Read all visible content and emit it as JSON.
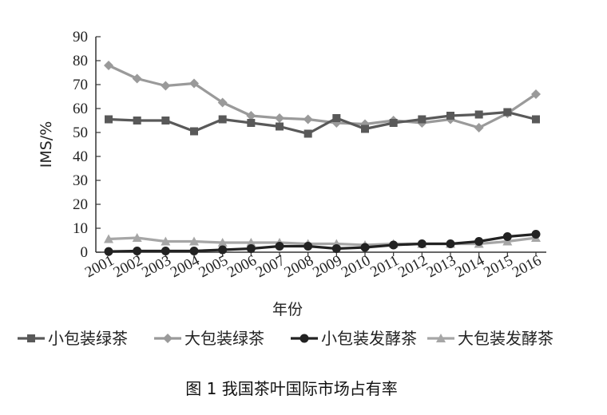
{
  "chart_data": {
    "type": "line",
    "xlabel": "年份",
    "ylabel": "IMS/%",
    "ylim": [
      0,
      90
    ],
    "yticks": [
      0,
      10,
      20,
      30,
      40,
      50,
      60,
      70,
      80,
      90
    ],
    "categories": [
      "2001",
      "2002",
      "2003",
      "2004",
      "2005",
      "2006",
      "2007",
      "2008",
      "2009",
      "2010",
      "2011",
      "2012",
      "2013",
      "2014",
      "2015",
      "2016"
    ],
    "grid": false,
    "legend_position": "bottom",
    "series": [
      {
        "name": "小包装绿茶",
        "marker": "square",
        "color": "#595959",
        "values": [
          55.5,
          55,
          55,
          50.5,
          55.5,
          54,
          52.5,
          49.5,
          56,
          51.5,
          54,
          55.5,
          57,
          57.5,
          58.5,
          55.5
        ]
      },
      {
        "name": "大包装绿茶",
        "marker": "diamond",
        "color": "#9a9a9a",
        "values": [
          78,
          72.5,
          69.5,
          70.5,
          62.5,
          57,
          56,
          55.5,
          54,
          53.5,
          55,
          54,
          55.5,
          52,
          58,
          66
        ]
      },
      {
        "name": "小包装发酵茶",
        "marker": "circle",
        "color": "#222222",
        "values": [
          0.3,
          0.5,
          0.5,
          0.5,
          1,
          1.5,
          2.5,
          2.5,
          1.5,
          2,
          3,
          3.5,
          3.5,
          4.5,
          6.5,
          7.5
        ]
      },
      {
        "name": "大包装发酵茶",
        "marker": "triangle",
        "color": "#a6a6a6",
        "values": [
          5.5,
          6,
          4.5,
          4.5,
          4,
          4,
          4,
          3.5,
          3.5,
          3,
          3.5,
          3.5,
          3.5,
          3.5,
          4.5,
          6
        ]
      }
    ]
  },
  "caption": "图 1  我国茶叶国际市场占有率"
}
